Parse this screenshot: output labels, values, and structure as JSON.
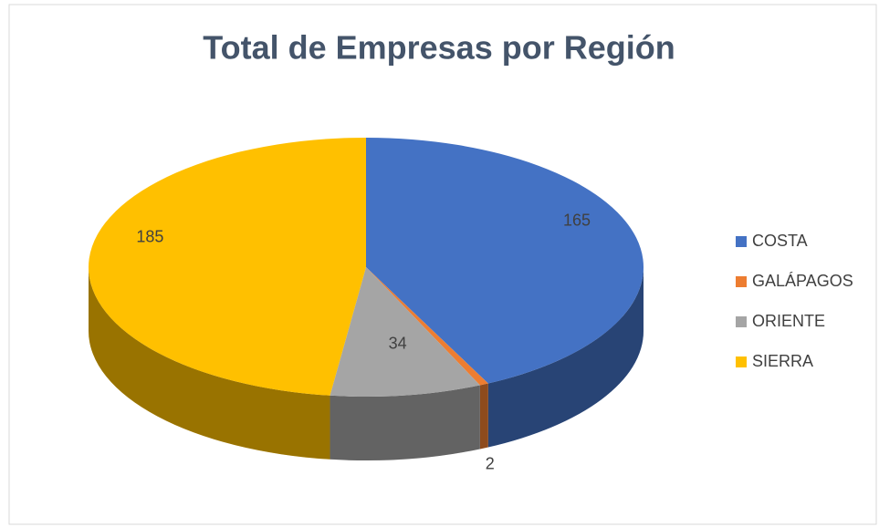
{
  "chart_data": {
    "type": "pie",
    "title": "Total de Empresas por Región",
    "categories": [
      "COSTA",
      "GALÁPAGOS",
      "ORIENTE",
      "SIERRA"
    ],
    "values": [
      165,
      2,
      34,
      185
    ],
    "colors": [
      "#4472c4",
      "#ed7d31",
      "#a5a5a5",
      "#ffc000"
    ],
    "legend": "right"
  }
}
